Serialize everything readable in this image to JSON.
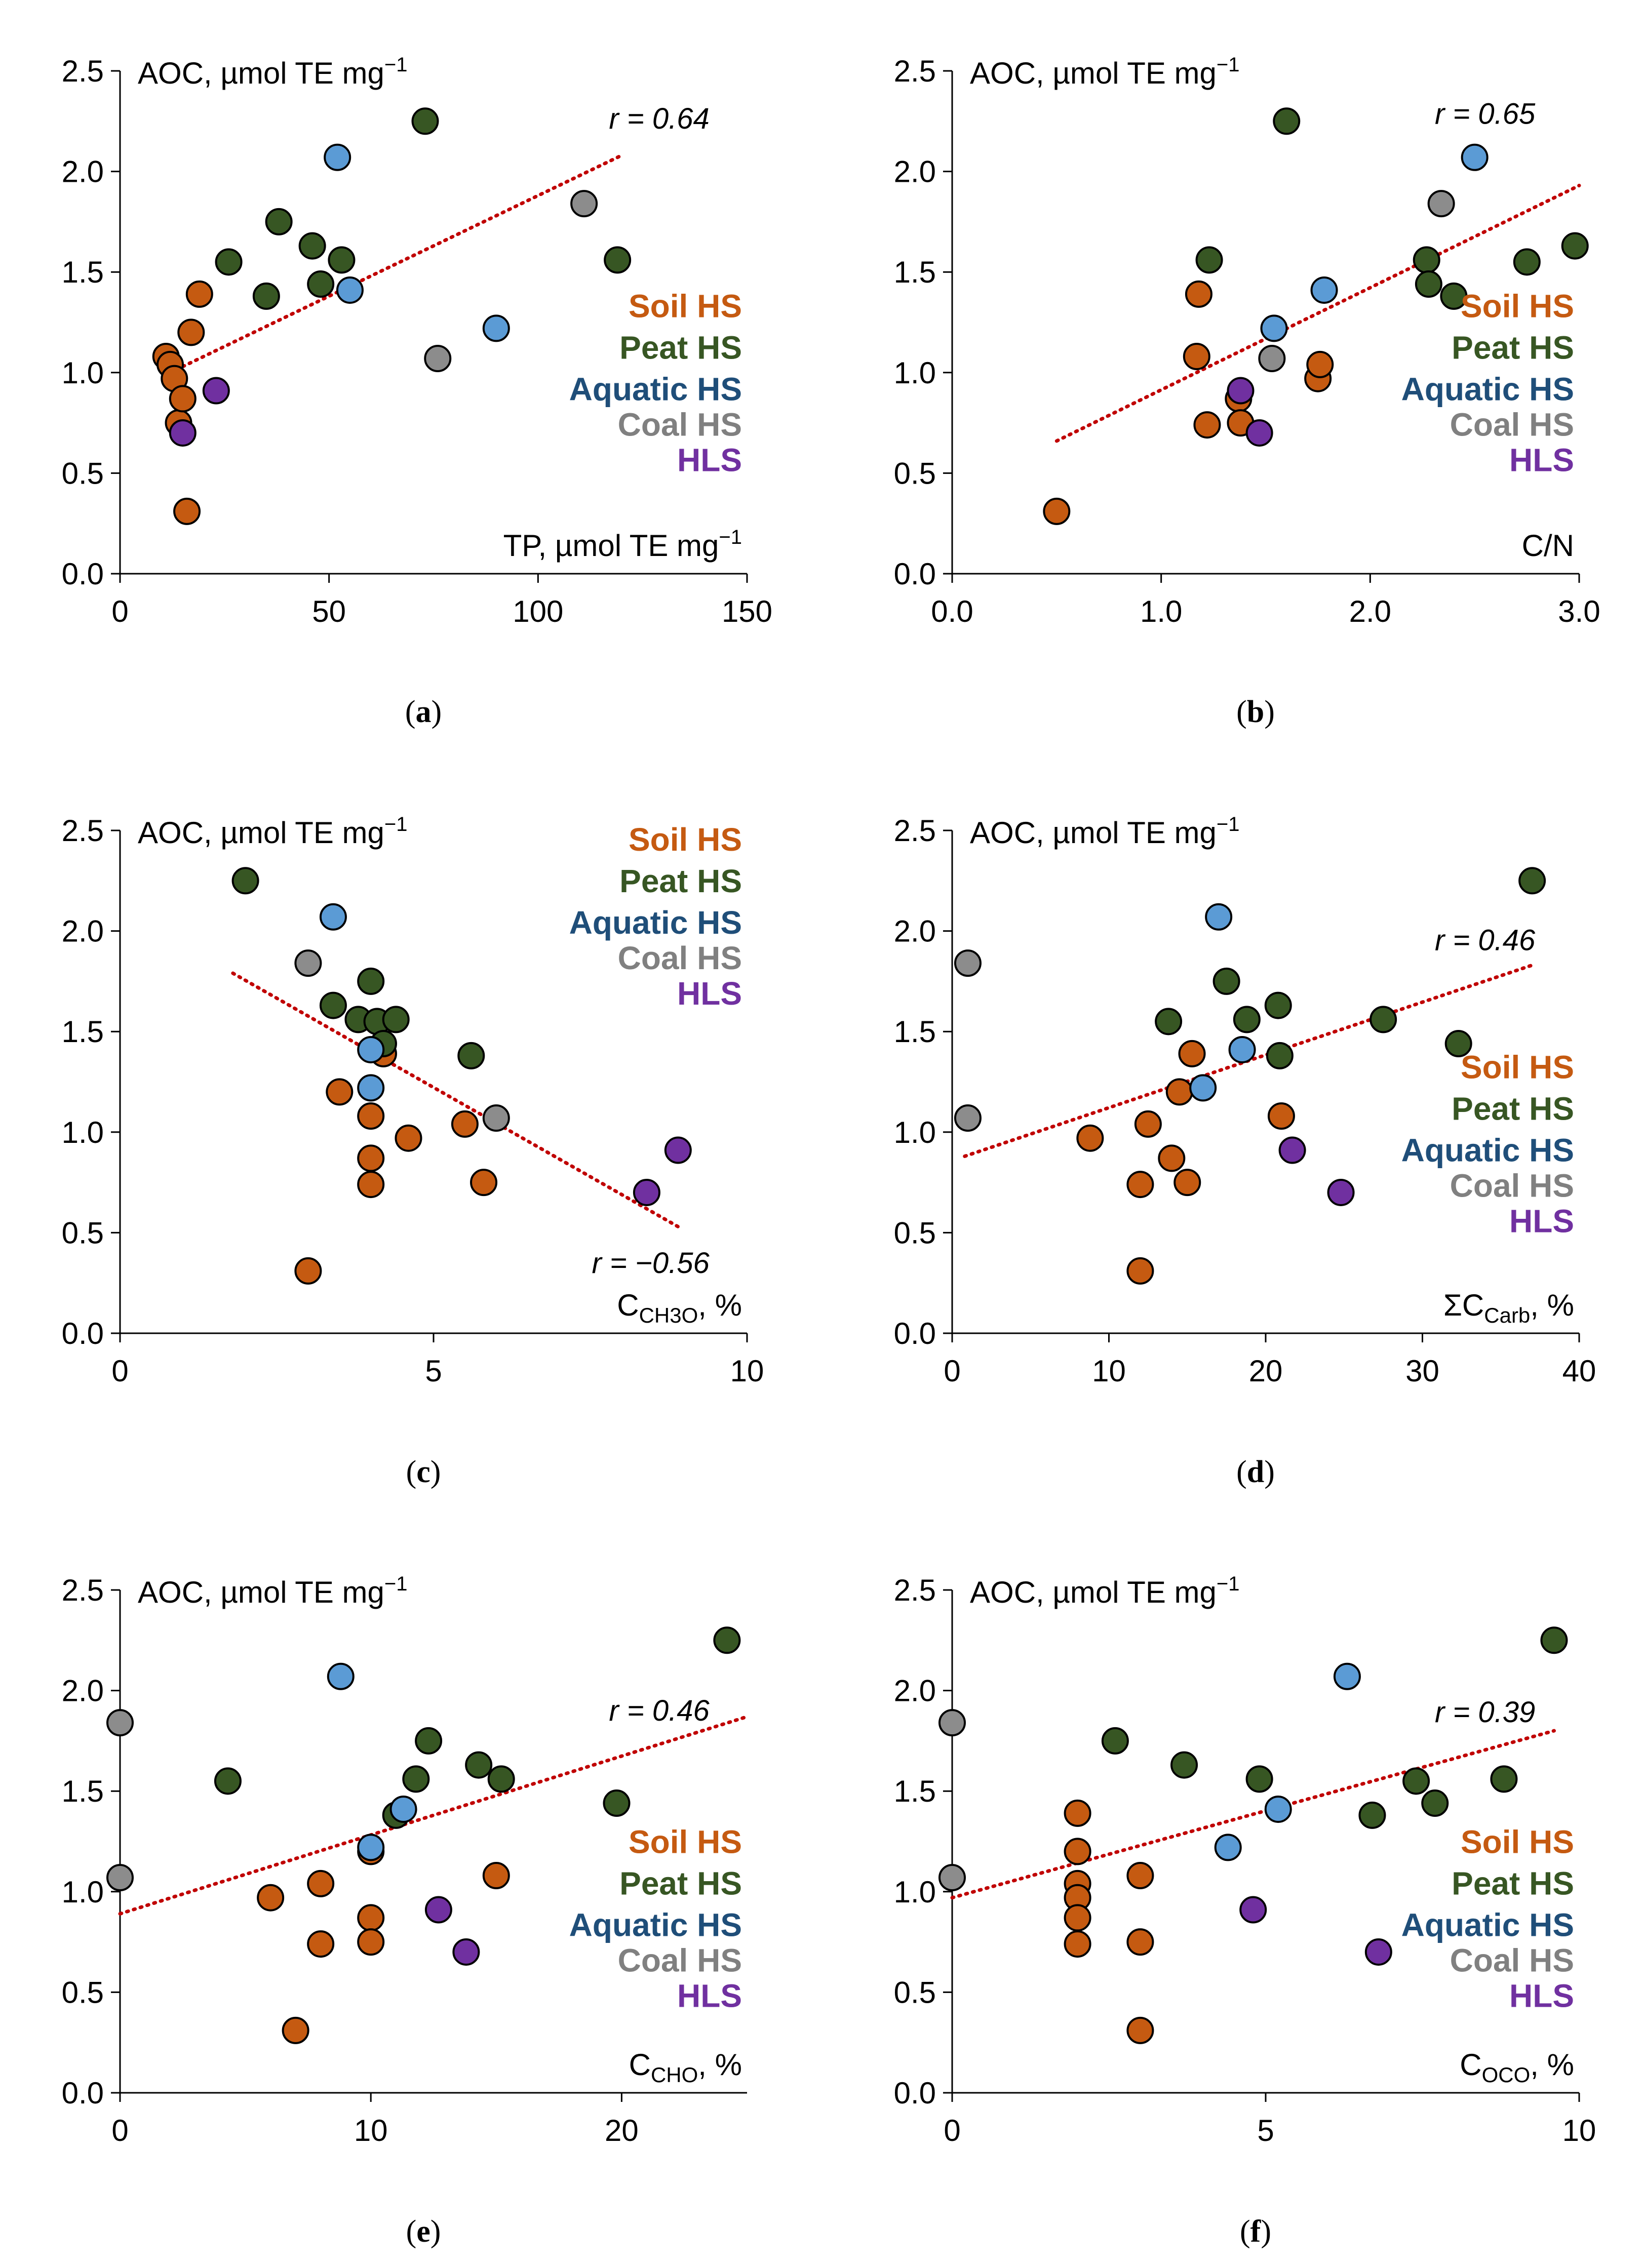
{
  "colors": {
    "soil": "#c55a11",
    "peat": "#375623",
    "aquatic": "#5b9bd5",
    "coal": "#8c8c8c",
    "hls": "#7030a0",
    "trend": "#c00000",
    "legend_aquatic": "#1f4e79",
    "legend_coal": "#808080"
  },
  "legend": [
    {
      "key": "soil",
      "label": "Soil HS"
    },
    {
      "key": "peat",
      "label": "Peat HS"
    },
    {
      "key": "aquatic",
      "label": "Aquatic HS"
    },
    {
      "key": "coal",
      "label": "Coal HS"
    },
    {
      "key": "hls",
      "label": "HLS"
    }
  ],
  "chart_data": [
    {
      "type": "scatter",
      "panel": "a",
      "caption": "a",
      "ylabel": "AOC, µmol TE mg",
      "ylabel_sup": "−1",
      "xlabel": "TP, µmol TE mg",
      "xlabel_sup": "−1",
      "xlabel_sub": "",
      "xlabel_tail": "",
      "xlim": [
        0,
        150
      ],
      "ylim": [
        0,
        2.5
      ],
      "xticks": [
        "0",
        "50",
        "100",
        "150"
      ],
      "xtick_values": [
        0,
        50,
        100,
        150
      ],
      "yticks": [
        "0.0",
        "0.5",
        "1.0",
        "1.5",
        "2.0",
        "2.5"
      ],
      "ytick_values": [
        0,
        0.5,
        1.0,
        1.5,
        2.0,
        2.5
      ],
      "r_label": "r = 0.64",
      "trend": {
        "x": [
          12,
          120
        ],
        "y": [
          1.0,
          2.08
        ]
      },
      "series": [
        {
          "name": "Soil HS",
          "key": "soil",
          "points": [
            [
              11,
              1.08
            ],
            [
              12,
              1.04
            ],
            [
              13,
              0.97
            ],
            [
              14,
              0.75
            ],
            [
              15,
              0.87
            ],
            [
              16,
              0.31
            ],
            [
              17,
              1.2
            ],
            [
              19,
              1.39
            ]
          ]
        },
        {
          "name": "Peat HS",
          "key": "peat",
          "points": [
            [
              26,
              1.55
            ],
            [
              35,
              1.38
            ],
            [
              38,
              1.75
            ],
            [
              46,
              1.63
            ],
            [
              48,
              1.44
            ],
            [
              53,
              1.56
            ],
            [
              73,
              2.25
            ],
            [
              119,
              1.56
            ]
          ]
        },
        {
          "name": "Aquatic HS",
          "key": "aquatic",
          "points": [
            [
              52,
              2.07
            ],
            [
              55,
              1.41
            ],
            [
              90,
              1.22
            ]
          ]
        },
        {
          "name": "Coal HS",
          "key": "coal",
          "points": [
            [
              76,
              1.07
            ],
            [
              111,
              1.84
            ]
          ]
        },
        {
          "name": "HLS",
          "key": "hls",
          "points": [
            [
              15,
              0.7
            ],
            [
              23,
              0.91
            ]
          ]
        }
      ]
    },
    {
      "type": "scatter",
      "panel": "b",
      "caption": "b",
      "ylabel": "AOC, µmol TE mg",
      "ylabel_sup": "−1",
      "xlabel": "C/N",
      "xlabel_sup": "",
      "xlabel_sub": "",
      "xlabel_tail": "",
      "xlim": [
        0,
        3
      ],
      "ylim": [
        0,
        2.5
      ],
      "xticks": [
        "0.0",
        "1.0",
        "2.0",
        "3.0"
      ],
      "xtick_values": [
        0,
        1,
        2,
        3
      ],
      "yticks": [
        "0.0",
        "0.5",
        "1.0",
        "1.5",
        "2.0",
        "2.5"
      ],
      "ytick_values": [
        0,
        0.5,
        1.0,
        1.5,
        2.0,
        2.5
      ],
      "r_label": "r = 0.65",
      "trend": {
        "x": [
          0.5,
          3.0
        ],
        "y": [
          0.66,
          1.93
        ]
      },
      "series": [
        {
          "name": "Soil HS",
          "key": "soil",
          "points": [
            [
              0.5,
              0.31
            ],
            [
              1.17,
              1.08
            ],
            [
              1.18,
              1.39
            ],
            [
              1.22,
              0.74
            ],
            [
              1.37,
              0.87
            ],
            [
              1.38,
              0.75
            ],
            [
              1.75,
              0.97
            ],
            [
              1.76,
              1.04
            ]
          ]
        },
        {
          "name": "Peat HS",
          "key": "peat",
          "points": [
            [
              1.23,
              1.56
            ],
            [
              1.6,
              2.25
            ],
            [
              2.27,
              1.56
            ],
            [
              2.28,
              1.44
            ],
            [
              2.4,
              1.38
            ],
            [
              2.75,
              1.55
            ],
            [
              2.98,
              1.63
            ]
          ]
        },
        {
          "name": "Aquatic HS",
          "key": "aquatic",
          "points": [
            [
              1.54,
              1.22
            ],
            [
              1.78,
              1.41
            ],
            [
              2.5,
              2.07
            ]
          ]
        },
        {
          "name": "Coal HS",
          "key": "coal",
          "points": [
            [
              1.53,
              1.07
            ],
            [
              2.34,
              1.84
            ]
          ]
        },
        {
          "name": "HLS",
          "key": "hls",
          "points": [
            [
              1.38,
              0.91
            ],
            [
              1.47,
              0.7
            ]
          ]
        }
      ]
    },
    {
      "type": "scatter",
      "panel": "c",
      "caption": "c",
      "ylabel": "AOC, µmol TE mg",
      "ylabel_sup": "−1",
      "xlabel": "C",
      "xlabel_sup": "",
      "xlabel_sub": "CH3O",
      "xlabel_tail": ", %",
      "xlim": [
        0,
        10
      ],
      "ylim": [
        0,
        2.5
      ],
      "xticks": [
        "0",
        "5",
        "10"
      ],
      "xtick_values": [
        0,
        5,
        10
      ],
      "yticks": [
        "0.0",
        "0.5",
        "1.0",
        "1.5",
        "2.0",
        "2.5"
      ],
      "ytick_values": [
        0,
        0.5,
        1.0,
        1.5,
        2.0,
        2.5
      ],
      "r_label": "r = −0.56",
      "trend": {
        "x": [
          1.8,
          8.9
        ],
        "y": [
          1.79,
          0.53
        ]
      },
      "series": [
        {
          "name": "Soil HS",
          "key": "soil",
          "points": [
            [
              3.0,
              0.31
            ],
            [
              3.5,
              1.2
            ],
            [
              4.0,
              1.08
            ],
            [
              4.0,
              0.87
            ],
            [
              4.0,
              0.74
            ],
            [
              4.2,
              1.39
            ],
            [
              4.6,
              0.97
            ],
            [
              5.5,
              1.04
            ],
            [
              5.8,
              0.75
            ]
          ]
        },
        {
          "name": "Peat HS",
          "key": "peat",
          "points": [
            [
              2.0,
              2.25
            ],
            [
              3.4,
              1.63
            ],
            [
              3.8,
              1.56
            ],
            [
              4.0,
              1.75
            ],
            [
              4.1,
              1.55
            ],
            [
              4.2,
              1.44
            ],
            [
              4.4,
              1.56
            ],
            [
              5.6,
              1.38
            ]
          ]
        },
        {
          "name": "Aquatic HS",
          "key": "aquatic",
          "points": [
            [
              3.4,
              2.07
            ],
            [
              4.0,
              1.41
            ],
            [
              4.0,
              1.22
            ]
          ]
        },
        {
          "name": "Coal HS",
          "key": "coal",
          "points": [
            [
              3.0,
              1.84
            ],
            [
              6.0,
              1.07
            ]
          ]
        },
        {
          "name": "HLS",
          "key": "hls",
          "points": [
            [
              8.4,
              0.7
            ],
            [
              8.9,
              0.91
            ]
          ]
        }
      ]
    },
    {
      "type": "scatter",
      "panel": "d",
      "caption": "d",
      "ylabel": "AOC, µmol TE mg",
      "ylabel_sup": "−1",
      "xlabel": "ΣC",
      "xlabel_sup": "",
      "xlabel_sub": "Carb",
      "xlabel_tail": ", %",
      "xlim": [
        0,
        40
      ],
      "ylim": [
        0,
        2.5
      ],
      "xticks": [
        "0",
        "10",
        "20",
        "30",
        "40"
      ],
      "xtick_values": [
        0,
        10,
        20,
        30,
        40
      ],
      "yticks": [
        "0.0",
        "0.5",
        "1.0",
        "1.5",
        "2.0",
        "2.5"
      ],
      "ytick_values": [
        0,
        0.5,
        1.0,
        1.5,
        2.0,
        2.5
      ],
      "r_label": "r = 0.46",
      "trend": {
        "x": [
          0.8,
          37
        ],
        "y": [
          0.88,
          1.83
        ]
      },
      "series": [
        {
          "name": "Soil HS",
          "key": "soil",
          "points": [
            [
              8.8,
              0.97
            ],
            [
              12.0,
              0.31
            ],
            [
              12.0,
              0.74
            ],
            [
              12.5,
              1.04
            ],
            [
              14.0,
              0.87
            ],
            [
              14.5,
              1.2
            ],
            [
              15.0,
              0.75
            ],
            [
              15.3,
              1.39
            ],
            [
              21.0,
              1.08
            ]
          ]
        },
        {
          "name": "Peat HS",
          "key": "peat",
          "points": [
            [
              13.8,
              1.55
            ],
            [
              17.5,
              1.75
            ],
            [
              18.8,
              1.56
            ],
            [
              20.8,
              1.63
            ],
            [
              20.9,
              1.38
            ],
            [
              27.5,
              1.56
            ],
            [
              32.3,
              1.44
            ],
            [
              37.0,
              2.25
            ]
          ]
        },
        {
          "name": "Aquatic HS",
          "key": "aquatic",
          "points": [
            [
              16.0,
              1.22
            ],
            [
              17.0,
              2.07
            ],
            [
              18.5,
              1.41
            ]
          ]
        },
        {
          "name": "Coal HS",
          "key": "coal",
          "points": [
            [
              1.0,
              1.84
            ],
            [
              1.0,
              1.07
            ]
          ]
        },
        {
          "name": "HLS",
          "key": "hls",
          "points": [
            [
              21.7,
              0.91
            ],
            [
              24.8,
              0.7
            ]
          ]
        }
      ]
    },
    {
      "type": "scatter",
      "panel": "e",
      "caption": "e",
      "ylabel": "AOC, µmol TE mg",
      "ylabel_sup": "−1",
      "xlabel": "C",
      "xlabel_sup": "",
      "xlabel_sub": "CHO",
      "xlabel_tail": ", %",
      "xlim": [
        0,
        25
      ],
      "ylim": [
        0,
        2.5
      ],
      "xticks": [
        "0",
        "10",
        "20"
      ],
      "xtick_values": [
        0,
        10,
        20
      ],
      "yticks": [
        "0.0",
        "0.5",
        "1.0",
        "1.5",
        "2.0",
        "2.5"
      ],
      "ytick_values": [
        0,
        0.5,
        1.0,
        1.5,
        2.0,
        2.5
      ],
      "r_label": "r = 0.46",
      "trend": {
        "x": [
          0,
          25
        ],
        "y": [
          0.89,
          1.87
        ]
      },
      "series": [
        {
          "name": "Soil HS",
          "key": "soil",
          "points": [
            [
              6.0,
              0.97
            ],
            [
              7.0,
              0.31
            ],
            [
              8.0,
              1.04
            ],
            [
              8.0,
              0.74
            ],
            [
              10.0,
              0.87
            ],
            [
              10.0,
              0.75
            ],
            [
              10.0,
              1.2
            ],
            [
              15.0,
              1.08
            ]
          ]
        },
        {
          "name": "Peat HS",
          "key": "peat",
          "points": [
            [
              4.3,
              1.55
            ],
            [
              11.0,
              1.38
            ],
            [
              11.8,
              1.56
            ],
            [
              12.3,
              1.75
            ],
            [
              14.3,
              1.63
            ],
            [
              15.2,
              1.56
            ],
            [
              19.8,
              1.44
            ],
            [
              24.2,
              2.25
            ]
          ]
        },
        {
          "name": "Aquatic HS",
          "key": "aquatic",
          "points": [
            [
              8.8,
              2.07
            ],
            [
              10.0,
              1.22
            ],
            [
              11.3,
              1.41
            ]
          ]
        },
        {
          "name": "Coal HS",
          "key": "coal",
          "points": [
            [
              0.0,
              1.84
            ],
            [
              0.0,
              1.07
            ]
          ]
        },
        {
          "name": "HLS",
          "key": "hls",
          "points": [
            [
              12.7,
              0.91
            ],
            [
              13.8,
              0.7
            ]
          ]
        }
      ]
    },
    {
      "type": "scatter",
      "panel": "f",
      "caption": "f",
      "ylabel": "AOC, µmol TE mg",
      "ylabel_sup": "−1",
      "xlabel": "C",
      "xlabel_sup": "",
      "xlabel_sub": "OCO",
      "xlabel_tail": ", %",
      "xlim": [
        0,
        10
      ],
      "ylim": [
        0,
        2.5
      ],
      "xticks": [
        "0",
        "5",
        "10"
      ],
      "xtick_values": [
        0,
        5,
        10
      ],
      "yticks": [
        "0.0",
        "0.5",
        "1.0",
        "1.5",
        "2.0",
        "2.5"
      ],
      "ytick_values": [
        0,
        0.5,
        1.0,
        1.5,
        2.0,
        2.5
      ],
      "r_label": "r = 0.39",
      "trend": {
        "x": [
          0,
          9.6
        ],
        "y": [
          0.97,
          1.8
        ]
      },
      "series": [
        {
          "name": "Soil HS",
          "key": "soil",
          "points": [
            [
              2.0,
              1.39
            ],
            [
              2.0,
              1.2
            ],
            [
              2.0,
              1.04
            ],
            [
              2.0,
              0.97
            ],
            [
              2.0,
              0.87
            ],
            [
              2.0,
              0.74
            ],
            [
              3.0,
              1.08
            ],
            [
              3.0,
              0.75
            ],
            [
              3.0,
              0.31
            ]
          ]
        },
        {
          "name": "Peat HS",
          "key": "peat",
          "points": [
            [
              2.6,
              1.75
            ],
            [
              3.7,
              1.63
            ],
            [
              4.9,
              1.56
            ],
            [
              6.7,
              1.38
            ],
            [
              7.4,
              1.55
            ],
            [
              7.7,
              1.44
            ],
            [
              8.8,
              1.56
            ],
            [
              9.6,
              2.25
            ]
          ]
        },
        {
          "name": "Aquatic HS",
          "key": "aquatic",
          "points": [
            [
              4.4,
              1.22
            ],
            [
              5.2,
              1.41
            ],
            [
              6.3,
              2.07
            ]
          ]
        },
        {
          "name": "Coal HS",
          "key": "coal",
          "points": [
            [
              0.0,
              1.84
            ],
            [
              0.0,
              1.07
            ]
          ]
        },
        {
          "name": "HLS",
          "key": "hls",
          "points": [
            [
              4.8,
              0.91
            ],
            [
              6.8,
              0.7
            ]
          ]
        }
      ]
    }
  ]
}
